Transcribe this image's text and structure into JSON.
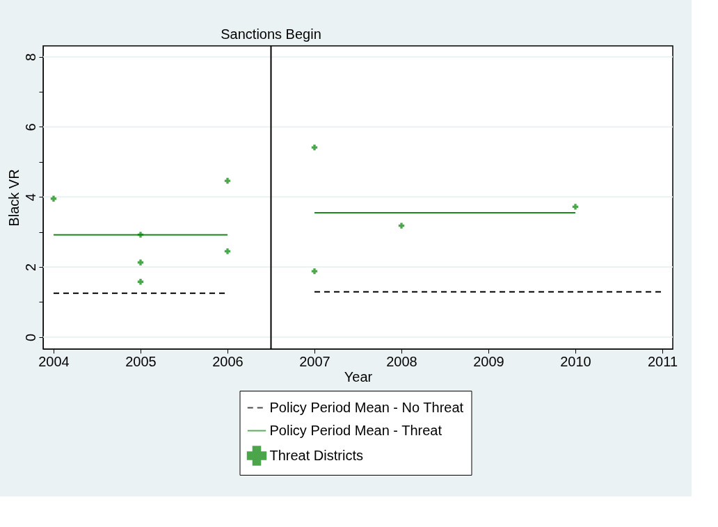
{
  "chart_data": {
    "type": "scatter",
    "xlabel": "Year",
    "ylabel": "Black VR",
    "xlim": [
      2003.88,
      2011.12
    ],
    "xticks": [
      2004,
      2005,
      2006,
      2007,
      2008,
      2009,
      2010,
      2011
    ],
    "ylim": [
      -0.34,
      8.31
    ],
    "yticks": [
      0,
      {
        "value": 1,
        "label": null
      },
      2,
      {
        "value": 3,
        "label": null
      },
      4,
      {
        "value": 5,
        "label": null
      },
      6,
      {
        "value": 7,
        "label": null
      },
      8
    ],
    "grid": "y",
    "legend": "bottom",
    "series": [
      {
        "name": "Policy Period Mean - No Threat",
        "type": "line",
        "color": "#000000",
        "line_style": "dashed",
        "x": [
          2004,
          2006,
          2006.5,
          2007,
          2011
        ],
        "values": [
          1.25,
          1.25,
          null,
          1.29,
          1.29
        ]
      },
      {
        "name": "Policy Period Mean - Threat",
        "type": "line",
        "color": "#1a8a1a",
        "line_style": "solid",
        "x": [
          2004,
          2006,
          2006.5,
          2007,
          2010
        ],
        "values": [
          2.92,
          2.92,
          null,
          3.55,
          3.55
        ]
      },
      {
        "name": "Threat Districts",
        "color": "#008000",
        "marker": "cross",
        "x": [
          2004,
          2005,
          2005,
          2005,
          2006,
          2006,
          2007,
          2007,
          2008,
          2010
        ],
        "values": [
          3.95,
          2.92,
          2.13,
          1.58,
          4.46,
          2.45,
          5.41,
          1.88,
          3.18,
          3.72
        ]
      }
    ],
    "ref_lines": [
      {
        "axis": "x",
        "value": 2006.5,
        "label": "Sanctions Begin",
        "color": "#000000"
      }
    ]
  }
}
